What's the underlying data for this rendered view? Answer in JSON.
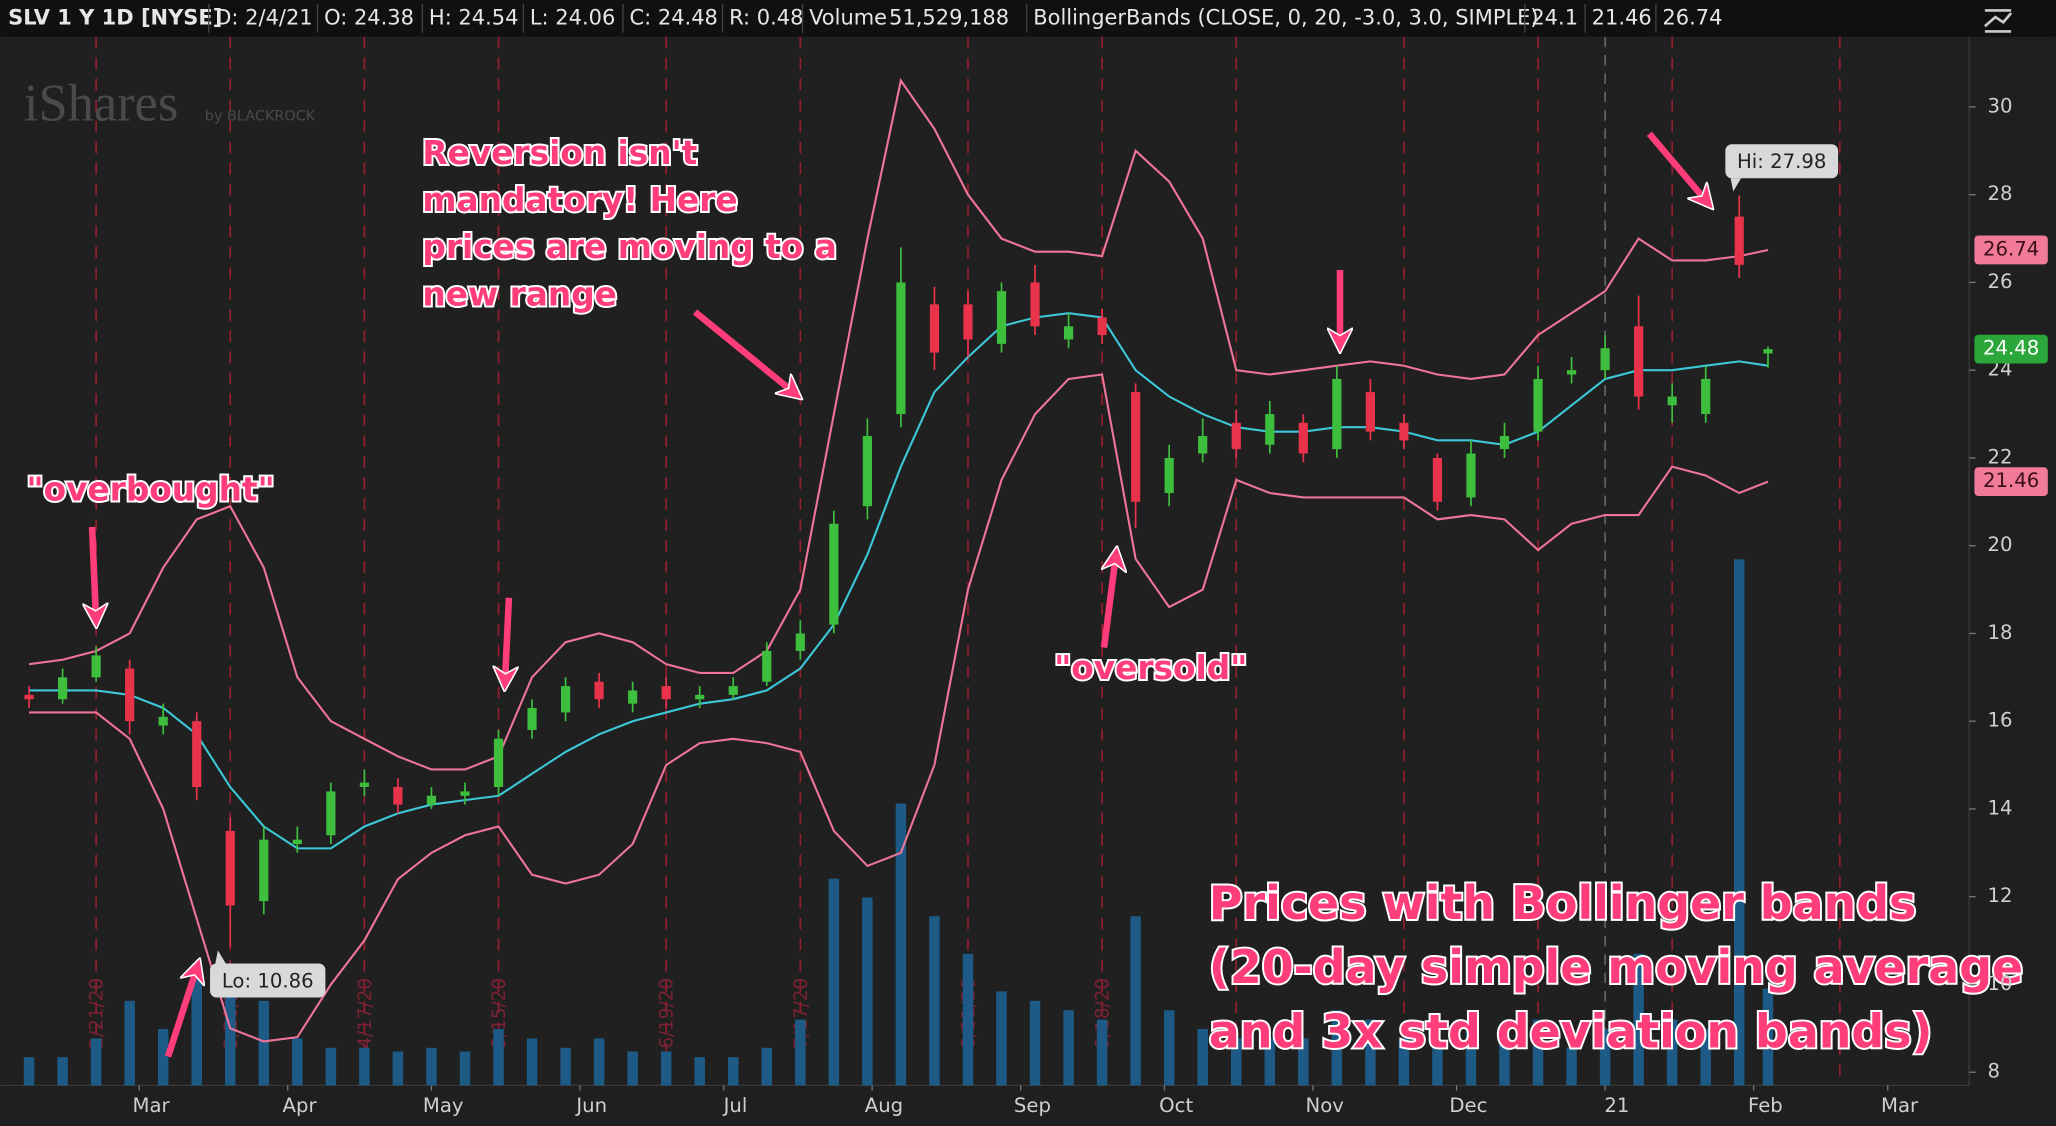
{
  "header": {
    "items": [
      "SLV 1 Y 1D [NYSE]",
      "D: 2/4/21",
      "O: 24.38",
      "H: 24.54",
      "L: 24.06",
      "C: 24.48",
      "R: 0.48",
      "Volume",
      "51,529,188",
      "BollingerBands (CLOSE, 0, 20, -3.0, 3.0, SIMPLE)",
      "24.1",
      "21.46",
      "26.74"
    ]
  },
  "logo": {
    "name": "iShares",
    "byline": "by BLACKROCK"
  },
  "chart_data": {
    "type": "candlestick",
    "x": [
      "2020-02-07",
      "2020-02-14",
      "2020-02-21",
      "2020-02-28",
      "2020-03-06",
      "2020-03-13",
      "2020-03-20",
      "2020-03-27",
      "2020-04-03",
      "2020-04-10",
      "2020-04-17",
      "2020-04-24",
      "2020-05-01",
      "2020-05-08",
      "2020-05-15",
      "2020-05-22",
      "2020-05-29",
      "2020-06-05",
      "2020-06-12",
      "2020-06-19",
      "2020-06-26",
      "2020-07-03",
      "2020-07-10",
      "2020-07-17",
      "2020-07-24",
      "2020-07-31",
      "2020-08-07",
      "2020-08-14",
      "2020-08-21",
      "2020-08-28",
      "2020-09-04",
      "2020-09-11",
      "2020-09-18",
      "2020-09-25",
      "2020-10-02",
      "2020-10-09",
      "2020-10-16",
      "2020-10-23",
      "2020-10-30",
      "2020-11-06",
      "2020-11-13",
      "2020-11-20",
      "2020-11-27",
      "2020-12-04",
      "2020-12-11",
      "2020-12-18",
      "2020-12-25",
      "2021-01-01",
      "2021-01-08",
      "2021-01-15",
      "2021-01-22",
      "2021-01-29",
      "2021-02-04"
    ],
    "candles": {
      "open": [
        16.6,
        16.5,
        17.0,
        17.2,
        15.9,
        16.0,
        13.5,
        11.9,
        13.2,
        13.4,
        14.5,
        14.5,
        14.1,
        14.3,
        14.5,
        15.8,
        16.2,
        16.9,
        16.4,
        16.8,
        16.5,
        16.6,
        16.9,
        17.6,
        18.2,
        20.9,
        23.0,
        25.5,
        25.5,
        24.6,
        26.0,
        24.7,
        25.2,
        23.5,
        21.2,
        22.1,
        22.8,
        22.3,
        22.8,
        22.2,
        23.5,
        22.8,
        22.0,
        21.1,
        22.2,
        22.6,
        23.9,
        24.0,
        25.0,
        23.2,
        23.0,
        27.5,
        24.38
      ],
      "high": [
        16.8,
        17.2,
        17.7,
        17.4,
        16.4,
        16.2,
        13.8,
        13.6,
        13.6,
        14.6,
        14.9,
        14.7,
        14.5,
        14.6,
        15.8,
        16.5,
        17.0,
        17.1,
        16.9,
        17.0,
        16.8,
        17.0,
        17.8,
        18.3,
        20.8,
        22.9,
        26.8,
        25.9,
        25.8,
        26.0,
        26.4,
        25.3,
        25.4,
        23.7,
        22.3,
        22.9,
        23.1,
        23.3,
        23.0,
        24.1,
        23.8,
        23.0,
        22.1,
        22.4,
        22.8,
        24.1,
        24.3,
        24.8,
        25.7,
        23.7,
        24.1,
        27.98,
        24.54
      ],
      "low": [
        16.3,
        16.4,
        16.9,
        15.7,
        15.7,
        14.2,
        10.86,
        11.6,
        13.0,
        13.2,
        14.3,
        13.9,
        14.0,
        14.1,
        14.3,
        15.6,
        16.0,
        16.3,
        16.2,
        16.3,
        16.3,
        16.5,
        16.8,
        17.4,
        18.0,
        20.6,
        22.7,
        24.0,
        24.3,
        24.4,
        24.8,
        24.5,
        24.6,
        20.4,
        20.9,
        21.9,
        22.0,
        22.1,
        21.9,
        22.0,
        22.4,
        22.2,
        20.8,
        20.9,
        22.0,
        22.4,
        23.7,
        23.8,
        23.1,
        22.8,
        22.8,
        26.1,
        24.06
      ],
      "close": [
        16.5,
        17.0,
        17.5,
        16.0,
        16.1,
        14.5,
        11.8,
        13.3,
        13.3,
        14.4,
        14.6,
        14.1,
        14.3,
        14.4,
        15.6,
        16.3,
        16.8,
        16.5,
        16.7,
        16.5,
        16.6,
        16.8,
        17.6,
        18.0,
        20.5,
        22.5,
        26.0,
        24.4,
        24.7,
        25.8,
        25.0,
        25.0,
        24.8,
        21.0,
        22.0,
        22.5,
        22.2,
        23.0,
        22.1,
        23.8,
        22.6,
        22.4,
        21.0,
        22.1,
        22.5,
        23.8,
        24.0,
        24.5,
        23.4,
        23.4,
        23.8,
        26.4,
        24.48
      ],
      "up_color": "#3dbf3d",
      "down_color": "#e8334a"
    },
    "middle": {
      "color": "#3cc8d8",
      "values": [
        16.7,
        16.7,
        16.7,
        16.6,
        16.3,
        15.7,
        14.5,
        13.6,
        13.1,
        13.1,
        13.6,
        13.9,
        14.1,
        14.2,
        14.3,
        14.8,
        15.3,
        15.7,
        16.0,
        16.2,
        16.4,
        16.5,
        16.7,
        17.2,
        18.2,
        19.8,
        21.8,
        23.5,
        24.3,
        25.0,
        25.2,
        25.3,
        25.2,
        24.0,
        23.4,
        23.0,
        22.7,
        22.6,
        22.6,
        22.7,
        22.7,
        22.6,
        22.4,
        22.4,
        22.3,
        22.6,
        23.2,
        23.8,
        24.0,
        24.0,
        24.1,
        24.2,
        24.1
      ]
    },
    "upper": {
      "color": "#ee7598",
      "values": [
        17.3,
        17.4,
        17.6,
        18.0,
        19.5,
        20.6,
        20.9,
        19.5,
        17.0,
        16.0,
        15.6,
        15.2,
        14.9,
        14.9,
        15.2,
        17.0,
        17.8,
        18.0,
        17.8,
        17.3,
        17.1,
        17.1,
        17.6,
        19.0,
        23.0,
        27.0,
        30.6,
        29.5,
        28.0,
        27.0,
        26.7,
        26.7,
        26.6,
        29.0,
        28.3,
        27.0,
        24.0,
        23.9,
        24.0,
        24.1,
        24.2,
        24.1,
        23.9,
        23.8,
        23.9,
        24.8,
        25.3,
        25.8,
        27.0,
        26.5,
        26.5,
        26.6,
        26.74
      ]
    },
    "lower": {
      "color": "#ee7598",
      "values": [
        16.2,
        16.2,
        16.2,
        15.6,
        14.0,
        11.5,
        9.0,
        8.7,
        8.8,
        10.0,
        11.0,
        12.4,
        13.0,
        13.4,
        13.6,
        12.5,
        12.3,
        12.5,
        13.2,
        15.0,
        15.5,
        15.6,
        15.5,
        15.3,
        13.5,
        12.7,
        13.0,
        15.0,
        19.0,
        21.5,
        23.0,
        23.8,
        23.9,
        19.7,
        18.6,
        19.0,
        21.5,
        21.2,
        21.1,
        21.1,
        21.1,
        21.1,
        20.6,
        20.7,
        20.6,
        19.9,
        20.5,
        20.7,
        20.7,
        21.8,
        21.6,
        21.2,
        21.46
      ]
    },
    "volume": {
      "color": "#1d5a86",
      "values": [
        15000000,
        15000000,
        25000000,
        45000000,
        30000000,
        65000000,
        60000000,
        45000000,
        25000000,
        20000000,
        20000000,
        18000000,
        20000000,
        18000000,
        30000000,
        25000000,
        20000000,
        25000000,
        18000000,
        18000000,
        15000000,
        15000000,
        20000000,
        35000000,
        110000000,
        100000000,
        150000000,
        90000000,
        70000000,
        50000000,
        45000000,
        40000000,
        35000000,
        90000000,
        40000000,
        30000000,
        25000000,
        25000000,
        25000000,
        40000000,
        35000000,
        25000000,
        20000000,
        30000000,
        25000000,
        35000000,
        20000000,
        30000000,
        70000000,
        35000000,
        30000000,
        280000000,
        51529188
      ]
    },
    "volume_ylim": [
      0,
      300000000
    ],
    "xlim": [
      "2020-02-01",
      "2021-03-18"
    ],
    "xticks": [
      {
        "value": "2020-03-01",
        "label": "Mar"
      },
      {
        "value": "2020-04-01",
        "label": "Apr"
      },
      {
        "value": "2020-05-01",
        "label": "May"
      },
      {
        "value": "2020-06-01",
        "label": "Jun"
      },
      {
        "value": "2020-07-01",
        "label": "Jul"
      },
      {
        "value": "2020-08-01",
        "label": "Aug"
      },
      {
        "value": "2020-09-01",
        "label": "Sep"
      },
      {
        "value": "2020-10-01",
        "label": "Oct"
      },
      {
        "value": "2020-11-01",
        "label": "Nov"
      },
      {
        "value": "2020-12-01",
        "label": "Dec"
      },
      {
        "value": "2021-01-01",
        "label": "21"
      },
      {
        "value": "2021-02-01",
        "label": "Feb"
      },
      {
        "value": "2021-03-01",
        "label": "Mar"
      }
    ],
    "year_divider": "2021-01-01",
    "ylim": [
      7.7,
      31.6
    ],
    "yticks": [
      8,
      10,
      12,
      14,
      16,
      18,
      20,
      22,
      24,
      26,
      28,
      30
    ],
    "expiry_markers": [
      {
        "x": "2020-02-21",
        "label": "2/21/20"
      },
      {
        "x": "2020-03-20",
        "label": "3/20/20"
      },
      {
        "x": "2020-04-17",
        "label": "4/17/20"
      },
      {
        "x": "2020-05-15",
        "label": "5/15/20"
      },
      {
        "x": "2020-06-19",
        "label": "6/19/20"
      },
      {
        "x": "2020-07-17",
        "label": "7/17/20"
      },
      {
        "x": "2020-08-21",
        "label": "8/21/20"
      },
      {
        "x": "2020-09-18",
        "label": "9/18/20"
      },
      {
        "x": "2020-10-16",
        "label": null
      },
      {
        "x": "2020-11-20",
        "label": null
      },
      {
        "x": "2020-12-18",
        "label": null
      },
      {
        "x": "2021-01-15",
        "label": null
      },
      {
        "x": "2021-02-19",
        "label": null
      }
    ],
    "callouts": [
      "Hi: 27.98",
      "Lo: 10.86"
    ],
    "annotations": {
      "reversion": [
        "Reversion isn't",
        "mandatory! Here",
        "prices are moving to a",
        "new range"
      ],
      "overbought": "\"overbought\"",
      "oversold": "\"oversold\"",
      "caption": [
        "Prices with Bollinger bands",
        "(20-day simple moving average",
        "and 3x std deviation bands)"
      ]
    }
  }
}
